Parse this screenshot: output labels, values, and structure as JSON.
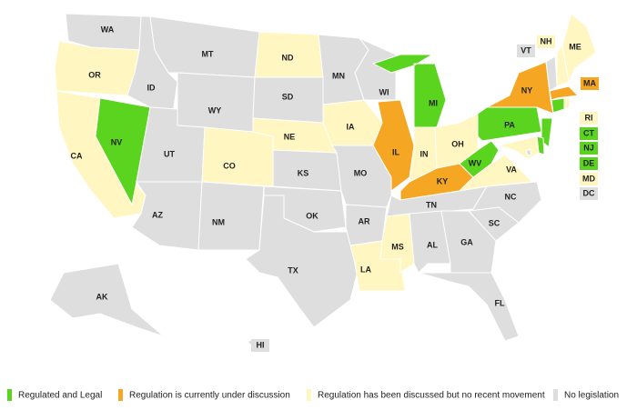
{
  "legend": [
    {
      "label": "Regulated and Legal",
      "color": "#5ad41e"
    },
    {
      "label": "Regulation is currently under discussion",
      "color": "#f5a623"
    },
    {
      "label": "Regulation has been discussed but no recent movement",
      "color": "#fff6c2"
    },
    {
      "label": "No legislation",
      "color": "#dedede"
    }
  ],
  "states": [
    {
      "label": "WA",
      "status": 3
    },
    {
      "label": "OR",
      "status": 2
    },
    {
      "label": "CA",
      "status": 2
    },
    {
      "label": "NV",
      "status": 0
    },
    {
      "label": "ID",
      "status": 3
    },
    {
      "label": "MT",
      "status": 3
    },
    {
      "label": "WY",
      "status": 3
    },
    {
      "label": "UT",
      "status": 3
    },
    {
      "label": "AZ",
      "status": 3
    },
    {
      "label": "CO",
      "status": 2
    },
    {
      "label": "NM",
      "status": 3
    },
    {
      "label": "ND",
      "status": 2
    },
    {
      "label": "SD",
      "status": 3
    },
    {
      "label": "NE",
      "status": 2
    },
    {
      "label": "KS",
      "status": 3
    },
    {
      "label": "OK",
      "status": 3
    },
    {
      "label": "TX",
      "status": 3
    },
    {
      "label": "MN",
      "status": 3
    },
    {
      "label": "IA",
      "status": 2
    },
    {
      "label": "MO",
      "status": 3
    },
    {
      "label": "AR",
      "status": 3
    },
    {
      "label": "LA",
      "status": 2
    },
    {
      "label": "WI",
      "status": 3
    },
    {
      "label": "IL",
      "status": 1
    },
    {
      "label": "MI",
      "status": 0
    },
    {
      "label": "IN",
      "status": 2
    },
    {
      "label": "OH",
      "status": 2
    },
    {
      "label": "KY",
      "status": 1
    },
    {
      "label": "TN",
      "status": 3
    },
    {
      "label": "MS",
      "status": 2
    },
    {
      "label": "AL",
      "status": 3
    },
    {
      "label": "GA",
      "status": 3
    },
    {
      "label": "FL",
      "status": 3
    },
    {
      "label": "SC",
      "status": 3
    },
    {
      "label": "NC",
      "status": 3
    },
    {
      "label": "VA",
      "status": 2
    },
    {
      "label": "WV",
      "status": 0
    },
    {
      "label": "PA",
      "status": 0
    },
    {
      "label": "NY",
      "status": 1
    },
    {
      "label": "VT",
      "status": 3
    },
    {
      "label": "NH",
      "status": 2
    },
    {
      "label": "ME",
      "status": 2
    },
    {
      "label": "MA",
      "status": 1
    },
    {
      "label": "CT",
      "status": 0
    },
    {
      "label": "RI",
      "status": 2
    },
    {
      "label": "NJ",
      "status": 0
    },
    {
      "label": "DE",
      "status": 0
    },
    {
      "label": "MD",
      "status": 2
    },
    {
      "label": "DC",
      "status": 3
    },
    {
      "label": "AK",
      "status": 3
    },
    {
      "label": "HI",
      "status": 3
    }
  ]
}
